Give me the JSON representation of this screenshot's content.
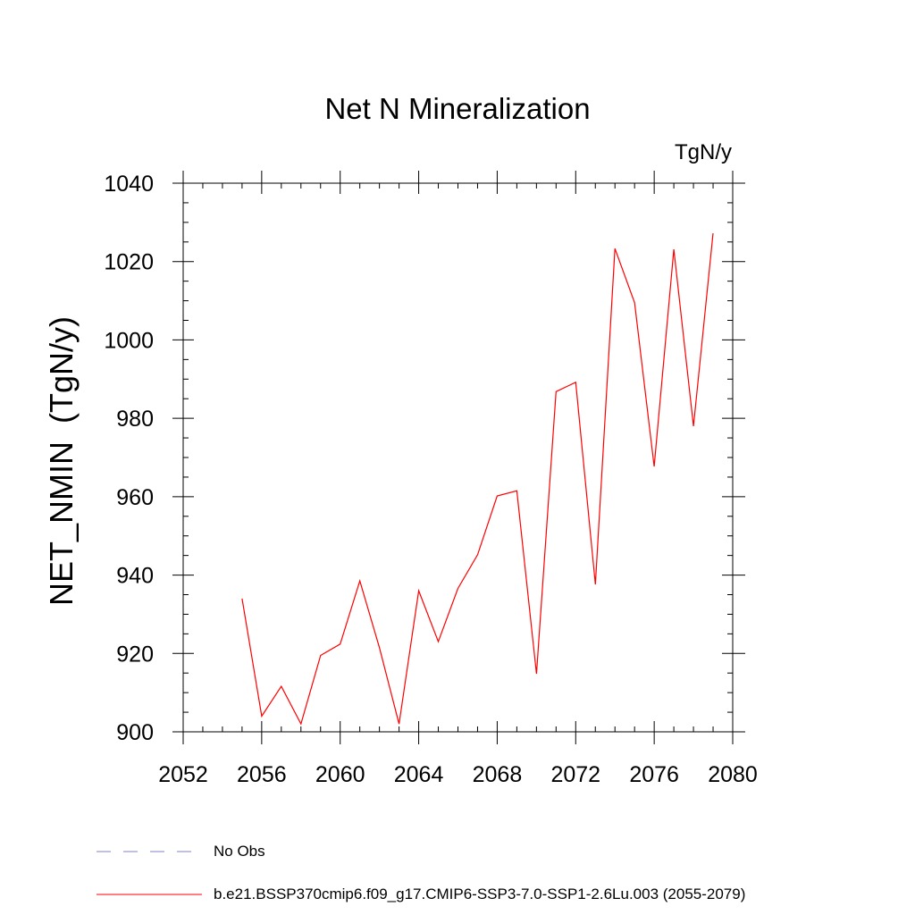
{
  "chart_data": {
    "type": "line",
    "title": "Net N Mineralization",
    "units": "TgN/y",
    "ylabel": "NET_NMIN  (TgN/y)",
    "xlabel": "",
    "xlim": [
      2052,
      2080
    ],
    "ylim": [
      900,
      1040
    ],
    "xticks": [
      2052,
      2056,
      2060,
      2064,
      2068,
      2072,
      2076,
      2080
    ],
    "yticks": [
      900,
      920,
      940,
      960,
      980,
      1000,
      1020,
      1040
    ],
    "series": [
      {
        "name": "b.e21.BSSP370cmip6.f09_g17.CMIP6-SSP3-7.0-SSP1-2.6Lu.003 (2055-2079)",
        "color": "#ff0000",
        "style": "solid",
        "x": [
          2055,
          2056,
          2057,
          2058,
          2059,
          2060,
          2061,
          2062,
          2063,
          2064,
          2065,
          2066,
          2067,
          2068,
          2069,
          2070,
          2071,
          2072,
          2073,
          2074,
          2075,
          2076,
          2077,
          2078,
          2079
        ],
        "y": [
          934,
          904,
          911.6,
          902,
          919.5,
          922.4,
          938.5,
          921.5,
          902,
          936,
          923,
          936.6,
          945.2,
          960.2,
          961.5,
          914.8,
          986.8,
          989.2,
          937.6,
          1023.3,
          1009.5,
          967.7,
          1023.1,
          978,
          1027.2
        ]
      }
    ],
    "legend": [
      {
        "label": "No Obs",
        "style": "dashed",
        "color": "#8080c0"
      },
      {
        "label": "b.e21.BSSP370cmip6.f09_g17.CMIP6-SSP3-7.0-SSP1-2.6Lu.003 (2055-2079)",
        "style": "solid",
        "color": "#ff0000"
      }
    ]
  }
}
